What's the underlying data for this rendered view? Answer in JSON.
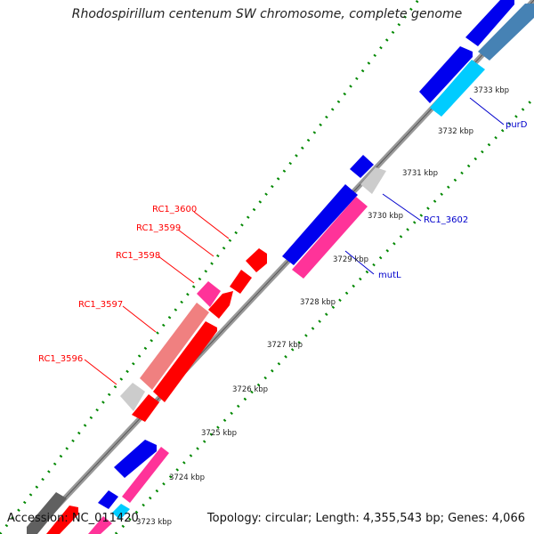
{
  "title": "Rhodospirillum centenum SW chromosome, complete genome",
  "accession": "Accession: NC_011420",
  "stats": "Topology: circular; Length: 4,355,543 bp; Genes: 4,066",
  "ticks": [
    "3723 kbp",
    "3724 kbp",
    "3725 kbp",
    "3726 kbp",
    "3727 kbp",
    "3728 kbp",
    "3729 kbp",
    "3730 kbp",
    "3731 kbp",
    "3732 kbp",
    "3733 kbp"
  ],
  "gene_labels": {
    "rc1_3600": "RC1_3600",
    "rc1_3599": "RC1_3599",
    "rc1_3598": "RC1_3598",
    "rc1_3597": "RC1_3597",
    "rc1_3596": "RC1_3596",
    "rc1_3602": "RC1_3602",
    "mutl": "mutL",
    "purd": "purD"
  },
  "colors": {
    "red": "#ff0000",
    "salmon": "#f08080",
    "pink": "#ff3399",
    "gray": "#cccccc",
    "blue": "#0000ee",
    "cyan": "#00ccff",
    "steel": "#4682b4",
    "dark_gray": "#606060",
    "backbone": "#999999",
    "dots": "#008800"
  }
}
